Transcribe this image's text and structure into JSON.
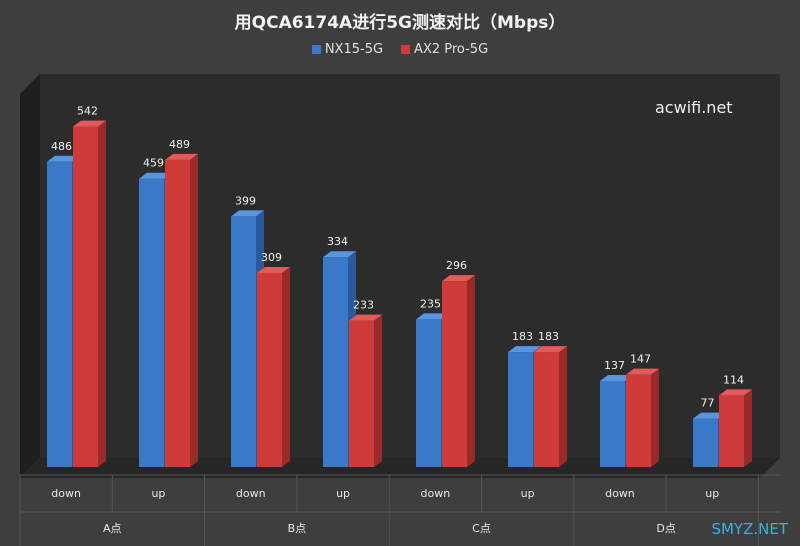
{
  "chart_data": {
    "type": "bar",
    "title": "用QCA6174A进行5G测速对比（Mbps）",
    "categories": [
      "down",
      "up",
      "down",
      "up",
      "down",
      "up",
      "down",
      "up"
    ],
    "groups": [
      "A点",
      "B点",
      "C点",
      "D点"
    ],
    "series": [
      {
        "name": "NX15-5G",
        "values": [
          486,
          459,
          399,
          334,
          235,
          183,
          137,
          77
        ],
        "color": "#3a78c8"
      },
      {
        "name": "AX2 Pro-5G",
        "values": [
          542,
          489,
          309,
          233,
          296,
          183,
          147,
          114
        ],
        "color": "#cf3a3a"
      }
    ],
    "ylim": [
      0,
      600
    ],
    "grid": false,
    "legend": "top"
  },
  "watermark": "acwifi.net",
  "corner_mark": "SMYZ.NET"
}
